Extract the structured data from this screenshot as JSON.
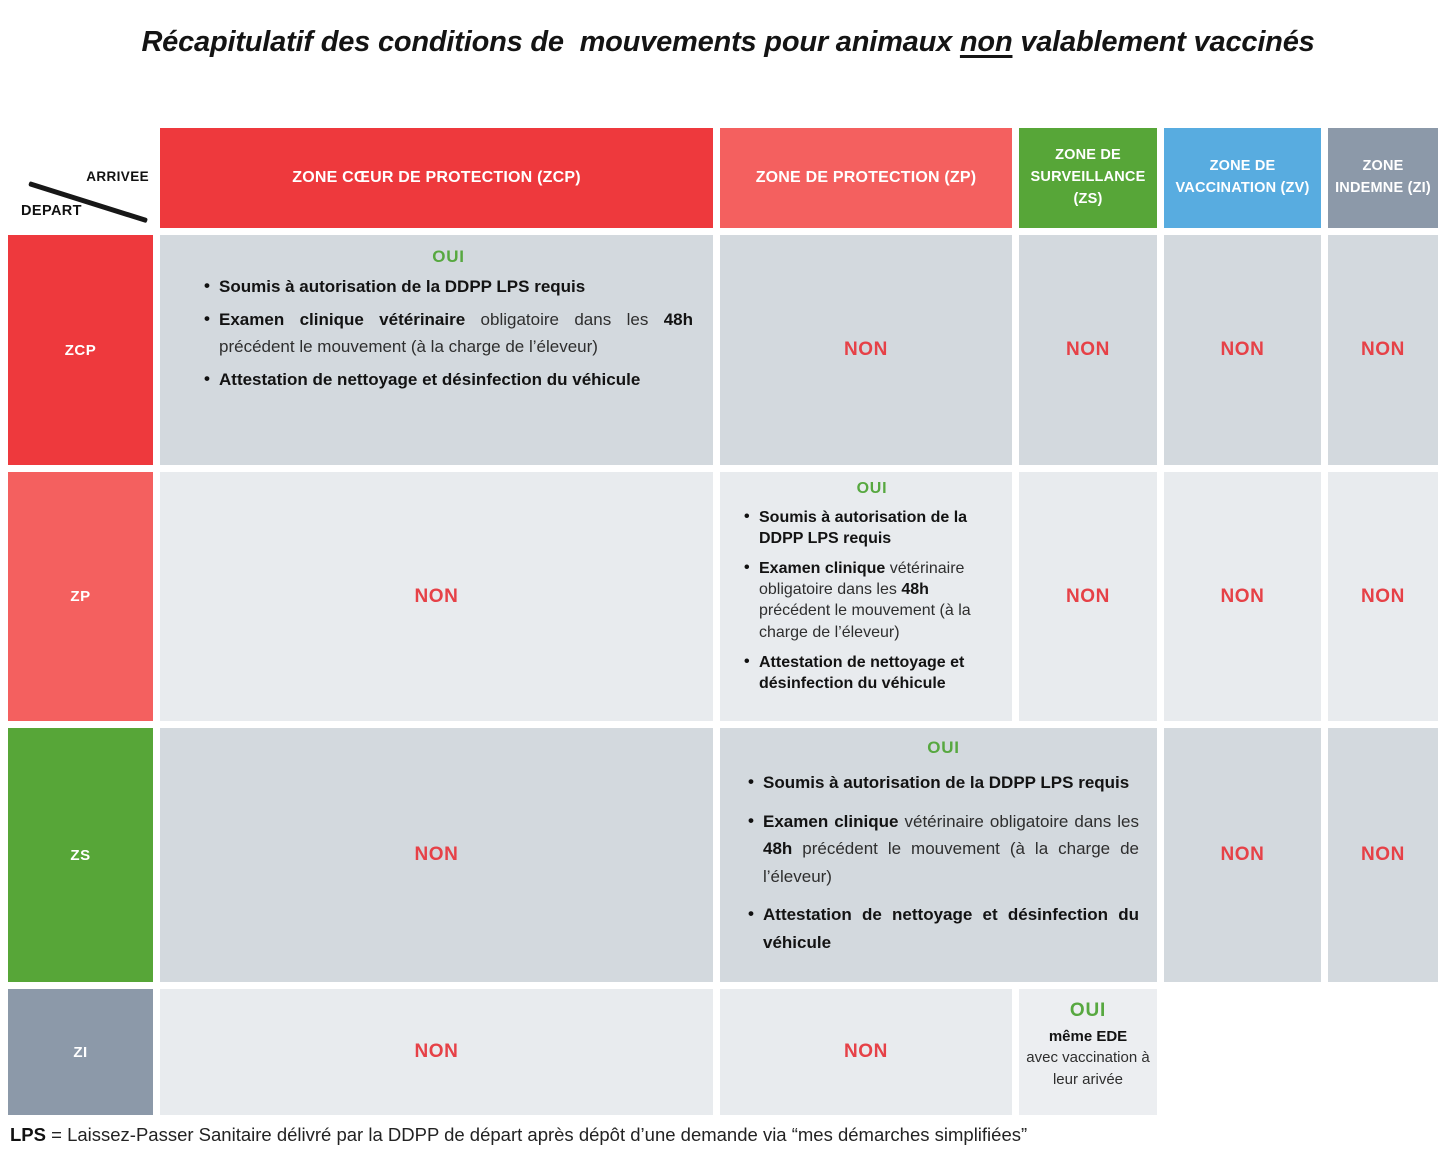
{
  "title": {
    "part1": "Récapitulatif des conditions de  mouvements pour animaux ",
    "underlined_word": "non",
    "part2": " valablement vaccinés"
  },
  "header": {
    "corner": {
      "arrival_label": "ARRIVEE",
      "departure_label": "DEPART"
    },
    "columns": [
      {
        "id": "ZCP",
        "label": "ZONE CŒUR DE PROTECTION (ZCP)",
        "color": "#ee393d"
      },
      {
        "id": "ZP",
        "label": "ZONE DE PROTECTION (ZP)",
        "color": "#f4605f"
      },
      {
        "id": "ZS",
        "label": "ZONE DE SURVEILLANCE (ZS)",
        "color": "#57a638"
      },
      {
        "id": "ZV",
        "label": "ZONE DE VACCINATION (ZV)",
        "color": "#58ace0"
      },
      {
        "id": "ZI",
        "label": "ZONE INDEMNE (ZI)",
        "color": "#8c99a9"
      }
    ]
  },
  "matrix": {
    "rows": [
      {
        "departure": "ZCP",
        "to_zcp": {
          "verdict": "OUI",
          "bullet1": "Soumis à autorisation de la DDPP LPS requis",
          "bullet2_bold1": "Examen clinique vétérinaire",
          "bullet2_text1": " obligatoire dans les ",
          "bullet2_bold2": "48h",
          "bullet2_text2": " précédent le mouvement (à la charge de l’éleveur)",
          "bullet3": "Attestation de nettoyage et désinfection du véhicule"
        },
        "to_zp": "NON",
        "to_zs": "NON",
        "to_zv": "NON",
        "to_zi": "NON"
      },
      {
        "departure": "ZP",
        "to_zcp": "NON",
        "to_zp": {
          "verdict": "OUI",
          "bullet1": "Soumis à autorisation de la DDPP LPS requis",
          "bullet2_bold1": "Examen clinique",
          "bullet2_text1": " vétérinaire obligatoire dans les ",
          "bullet2_bold2": "48h",
          "bullet2_text2": " précédent le mouvement  (à la charge de l’éleveur)",
          "bullet3": "Attestation de nettoyage et désinfection du véhicule"
        },
        "to_zs": "NON",
        "to_zv": "NON",
        "to_zi": "NON"
      },
      {
        "departure": "ZS",
        "to_zcp": "NON",
        "to_zp_zs": {
          "verdict": "OUI",
          "bullet1": "Soumis à autorisation de la DDPP LPS requis",
          "bullet2_bold1": "Examen clinique",
          "bullet2_text1": " vétérinaire obligatoire dans les ",
          "bullet2_bold2": "48h",
          "bullet2_text2": " précédent le mouvement (à la charge de l’éleveur)",
          "bullet3": "Attestation de nettoyage et désinfection du véhicule"
        },
        "to_zv": "NON",
        "to_zi": "NON"
      },
      {
        "departure": "ZI",
        "to_zcp": "NON",
        "to_zp": "NON",
        "to_zs": {
          "verdict": "OUI",
          "line_bold": "même EDE",
          "line_text": "avec vaccination à leur arivée"
        }
      }
    ]
  },
  "footer": {
    "abbr": "LPS",
    "text": " = Laissez-Passer Sanitaire délivré par la DDPP de départ après dépôt d’une demande via “mes démarches simplifiées”"
  },
  "colors": {
    "non_text": "#e64147",
    "oui_text": "#57a840",
    "cell_dark": "#d3d9de",
    "cell_light": "#e8ebee"
  }
}
